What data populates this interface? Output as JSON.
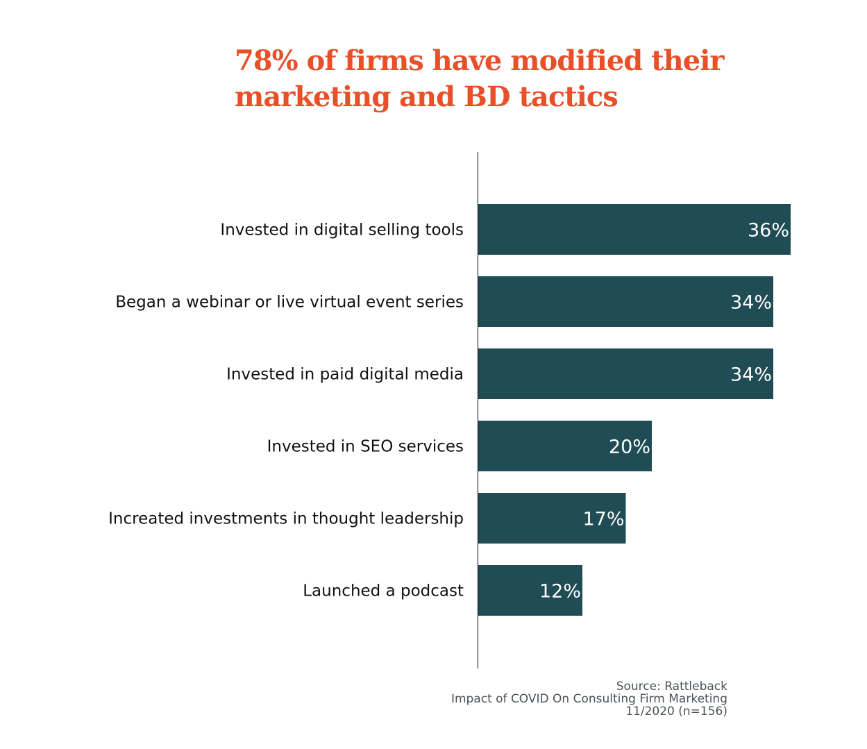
{
  "chart_data": {
    "type": "bar",
    "orientation": "horizontal",
    "title": [
      "78% of firms have modified their",
      "marketing and BD tactics"
    ],
    "categories": [
      "Invested in digital selling tools",
      "Began a webinar or live virtual event series",
      "Invested in paid digital media",
      "Invested in SEO services",
      "Increated investments in thought leadership",
      "Launched a podcast"
    ],
    "values": [
      36,
      34,
      34,
      20,
      17,
      12
    ],
    "data_labels": [
      "36%",
      "34%",
      "34%",
      "20%",
      "17%",
      "12%"
    ],
    "unit": "%",
    "xlim": [
      0,
      36
    ],
    "grid": false,
    "legend": "none",
    "colors": {
      "bar": "#1f4c55",
      "title": "#e8502a",
      "label_text": "#111111",
      "data_label": "#ffffff"
    },
    "source": [
      "Source: Rattleback",
      "Impact of COVID On Consulting Firm Marketing",
      "11/2020 (n=156)"
    ]
  }
}
